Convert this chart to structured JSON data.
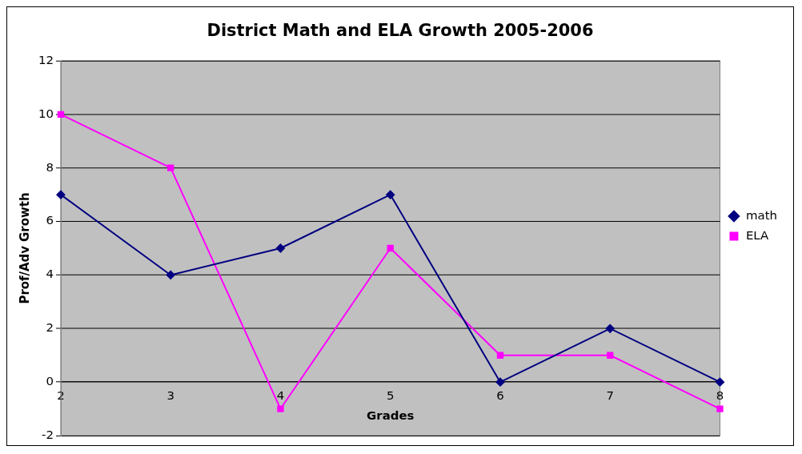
{
  "chart_data": {
    "type": "line",
    "title": "District Math and ELA Growth 2005-2006",
    "xlabel": "Grades",
    "ylabel": "Prof/Adv Growth",
    "categories": [
      "2",
      "3",
      "4",
      "5",
      "6",
      "7",
      "8"
    ],
    "series": [
      {
        "name": "math",
        "color": "#000080",
        "marker": "diamond",
        "values": [
          7,
          4,
          5,
          7,
          0,
          2,
          0
        ]
      },
      {
        "name": "ELA",
        "color": "#ff00ff",
        "marker": "square",
        "values": [
          10,
          8,
          -1,
          5,
          1,
          1,
          -1
        ]
      }
    ],
    "ylim": [
      -2,
      12
    ],
    "yticks": [
      -2,
      0,
      2,
      4,
      6,
      8,
      10,
      12
    ],
    "grid": "y",
    "legend": "right",
    "line_style": "solid"
  }
}
